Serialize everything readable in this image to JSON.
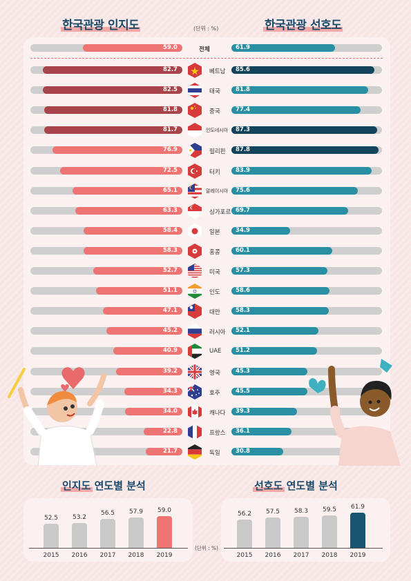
{
  "header": {
    "left_title": "한국관광 인지도",
    "right_title": "한국관광 선호도",
    "unit": "(단위 : %)"
  },
  "colors": {
    "awareness_normal": "#ee7474",
    "awareness_high": "#a8444a",
    "preference_normal": "#2b8fa3",
    "preference_high": "#14445c",
    "track": "#cfcfcf",
    "year_bar_gray": "#c9c9c9",
    "year_bar_awareness_2019": "#ee7474",
    "year_bar_preference_2019": "#1a5672"
  },
  "chart_data": [
    {
      "type": "bar",
      "orientation": "horizontal-butterfly",
      "title": "한국관광 인지도 / 한국관광 선호도",
      "unit": "(단위 : %)",
      "xlim": [
        0,
        100
      ],
      "categories": [
        "전체",
        "베트남",
        "태국",
        "중국",
        "인도네시아",
        "필리핀",
        "터키",
        "말레이시아",
        "싱가포르",
        "일본",
        "홍콩",
        "미국",
        "인도",
        "대만",
        "러시아",
        "UAE",
        "영국",
        "호주",
        "캐나다",
        "프랑스",
        "독일"
      ],
      "series": [
        {
          "name": "한국관광 인지도",
          "values": [
            59.0,
            82.7,
            82.5,
            81.8,
            81.7,
            76.9,
            72.5,
            65.1,
            63.3,
            58.4,
            58.3,
            52.7,
            51.1,
            47.1,
            45.2,
            40.9,
            39.2,
            34.3,
            34.0,
            22.8,
            21.7
          ],
          "labels": [
            "59.0",
            "82.7",
            "82.5",
            "81.8",
            "81.7",
            "76.9",
            "72.5",
            "65.1",
            "63.3",
            "58.4",
            "58.3",
            "52.7",
            "51.1",
            "47.1",
            "45.2",
            "40.9",
            "39.2",
            "34.3",
            "34.0",
            "22.8",
            "21.7"
          ]
        },
        {
          "name": "한국관광 선호도",
          "values": [
            61.9,
            85.6,
            81.8,
            77.4,
            87.3,
            87.8,
            83.9,
            75.6,
            69.7,
            34.9,
            60.1,
            57.3,
            58.6,
            58.3,
            52.1,
            51.2,
            45.3,
            45.5,
            39.3,
            36.1,
            30.8
          ],
          "labels": [
            "61.9",
            "85.6",
            "81.8",
            "77.4",
            "87.3",
            "87.8",
            "83.9",
            "75.6",
            "69.7",
            "34.9",
            "60.1",
            "57.3",
            "58.6",
            "58.3",
            "52.1",
            "51.2",
            "45.3",
            "45.5",
            "39.3",
            "36.1",
            "30.8"
          ]
        }
      ],
      "flags": [
        "",
        "vietnam-flag-icon",
        "thailand-flag-icon",
        "china-flag-icon",
        "indonesia-flag-icon",
        "philippines-flag-icon",
        "turkey-flag-icon",
        "malaysia-flag-icon",
        "singapore-flag-icon",
        "japan-flag-icon",
        "hongkong-flag-icon",
        "usa-flag-icon",
        "india-flag-icon",
        "taiwan-flag-icon",
        "russia-flag-icon",
        "uae-flag-icon",
        "uk-flag-icon",
        "australia-flag-icon",
        "canada-flag-icon",
        "france-flag-icon",
        "germany-flag-icon"
      ]
    },
    {
      "type": "bar",
      "title": "인지도 연도별 분석",
      "categories": [
        "2015",
        "2016",
        "2017",
        "2018",
        "2019"
      ],
      "values": [
        52.5,
        53.2,
        56.5,
        57.9,
        59.0
      ],
      "labels": [
        "52.5",
        "53.2",
        "56.5",
        "57.9",
        "59.0"
      ]
    },
    {
      "type": "bar",
      "title": "선호도 연도별 분석",
      "unit": "(단위 : %)",
      "categories": [
        "2015",
        "2016",
        "2017",
        "2018",
        "2019"
      ],
      "values": [
        56.2,
        57.5,
        58.3,
        59.5,
        61.9
      ],
      "labels": [
        "56.2",
        "57.5",
        "58.3",
        "59.5",
        "61.9"
      ]
    }
  ],
  "yearly": {
    "left_title": "인지도 연도별 분석",
    "right_title": "선호도 연도별 분석",
    "unit": "(단위 : %)"
  }
}
